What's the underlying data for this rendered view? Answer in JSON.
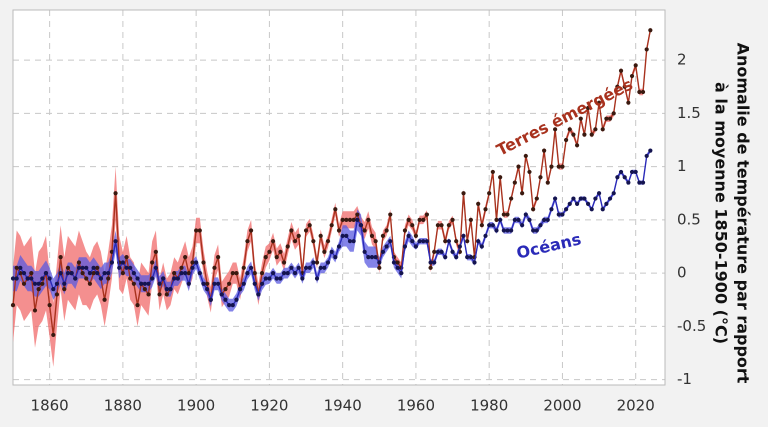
{
  "chart_data": {
    "type": "line",
    "y_label_lines": [
      "Anomalie de température par rapport",
      "à la moyenne 1850-1900 (°C)"
    ],
    "xlim": [
      1850,
      2028
    ],
    "ylim": [
      -1.05,
      2.47
    ],
    "xticks": [
      1860,
      1880,
      1900,
      1920,
      1940,
      1960,
      1980,
      2000,
      2020
    ],
    "yticks": [
      -1,
      -0.5,
      0,
      0.5,
      1,
      1.5,
      2
    ],
    "grid": true,
    "x": [
      1850,
      1851,
      1852,
      1853,
      1854,
      1855,
      1856,
      1857,
      1858,
      1859,
      1860,
      1861,
      1862,
      1863,
      1864,
      1865,
      1866,
      1867,
      1868,
      1869,
      1870,
      1871,
      1872,
      1873,
      1874,
      1875,
      1876,
      1877,
      1878,
      1879,
      1880,
      1881,
      1882,
      1883,
      1884,
      1885,
      1886,
      1887,
      1888,
      1889,
      1890,
      1891,
      1892,
      1893,
      1894,
      1895,
      1896,
      1897,
      1898,
      1899,
      1900,
      1901,
      1902,
      1903,
      1904,
      1905,
      1906,
      1907,
      1908,
      1909,
      1910,
      1911,
      1912,
      1913,
      1914,
      1915,
      1916,
      1917,
      1918,
      1919,
      1920,
      1921,
      1922,
      1923,
      1924,
      1925,
      1926,
      1927,
      1928,
      1929,
      1930,
      1931,
      1932,
      1933,
      1934,
      1935,
      1936,
      1937,
      1938,
      1939,
      1940,
      1941,
      1942,
      1943,
      1944,
      1945,
      1946,
      1947,
      1948,
      1949,
      1950,
      1951,
      1952,
      1953,
      1954,
      1955,
      1956,
      1957,
      1958,
      1959,
      1960,
      1961,
      1962,
      1963,
      1964,
      1965,
      1966,
      1967,
      1968,
      1969,
      1970,
      1971,
      1972,
      1973,
      1974,
      1975,
      1976,
      1977,
      1978,
      1979,
      1980,
      1981,
      1982,
      1983,
      1984,
      1985,
      1986,
      1987,
      1988,
      1989,
      1990,
      1991,
      1992,
      1993,
      1994,
      1995,
      1996,
      1997,
      1998,
      1999,
      2000,
      2001,
      2002,
      2003,
      2004,
      2005,
      2006,
      2007,
      2008,
      2009,
      2010,
      2011,
      2012,
      2013,
      2014,
      2015,
      2016,
      2017,
      2018,
      2019,
      2020,
      2021,
      2022,
      2023,
      2024
    ],
    "series": [
      {
        "name": "Terres émergées",
        "color": "#a8321e",
        "band_color": "#f06a6a",
        "dot_color": "#3a1a10",
        "values": [
          -0.3,
          0.05,
          0.0,
          -0.1,
          -0.05,
          0.0,
          -0.35,
          -0.15,
          -0.1,
          0.0,
          -0.3,
          -0.58,
          -0.2,
          0.15,
          -0.15,
          0.05,
          0.0,
          -0.05,
          0.1,
          0.0,
          -0.05,
          -0.1,
          0.0,
          0.05,
          -0.05,
          -0.25,
          -0.05,
          0.2,
          0.75,
          0.1,
          0.0,
          0.15,
          -0.05,
          -0.1,
          -0.3,
          -0.1,
          -0.15,
          -0.2,
          0.1,
          0.2,
          -0.2,
          -0.05,
          -0.2,
          -0.15,
          0.0,
          -0.05,
          0.05,
          0.15,
          0.0,
          0.1,
          0.4,
          0.4,
          0.1,
          -0.1,
          -0.25,
          0.05,
          0.15,
          -0.2,
          -0.15,
          -0.1,
          0.0,
          0.0,
          -0.15,
          0.05,
          0.3,
          0.4,
          0.0,
          -0.2,
          0.0,
          0.15,
          0.2,
          0.3,
          0.15,
          0.2,
          0.1,
          0.25,
          0.4,
          0.3,
          0.35,
          0.0,
          0.4,
          0.45,
          0.3,
          0.1,
          0.35,
          0.2,
          0.3,
          0.45,
          0.6,
          0.4,
          0.5,
          0.5,
          0.5,
          0.5,
          0.55,
          0.45,
          0.4,
          0.5,
          0.35,
          0.3,
          0.05,
          0.35,
          0.4,
          0.55,
          0.15,
          0.1,
          0.05,
          0.4,
          0.5,
          0.45,
          0.35,
          0.5,
          0.5,
          0.55,
          0.05,
          0.2,
          0.45,
          0.45,
          0.3,
          0.45,
          0.5,
          0.3,
          0.2,
          0.75,
          0.3,
          0.5,
          0.15,
          0.65,
          0.45,
          0.6,
          0.75,
          0.95,
          0.5,
          0.9,
          0.55,
          0.55,
          0.7,
          0.85,
          1.0,
          0.75,
          1.1,
          0.95,
          0.6,
          0.7,
          0.9,
          1.15,
          0.85,
          1.0,
          1.35,
          1.0,
          1.0,
          1.25,
          1.35,
          1.3,
          1.2,
          1.45,
          1.3,
          1.55,
          1.3,
          1.35,
          1.6,
          1.35,
          1.45,
          1.45,
          1.5,
          1.75,
          1.9,
          1.75,
          1.6,
          1.85,
          1.95,
          1.7,
          1.7,
          2.1,
          2.28
        ],
        "uncertainty": [
          0.35,
          0.35,
          0.35,
          0.35,
          0.35,
          0.35,
          0.35,
          0.35,
          0.35,
          0.35,
          0.3,
          0.3,
          0.3,
          0.3,
          0.3,
          0.3,
          0.3,
          0.3,
          0.3,
          0.3,
          0.25,
          0.25,
          0.25,
          0.25,
          0.25,
          0.25,
          0.25,
          0.25,
          0.25,
          0.25,
          0.2,
          0.2,
          0.2,
          0.2,
          0.2,
          0.2,
          0.2,
          0.2,
          0.2,
          0.2,
          0.15,
          0.15,
          0.15,
          0.15,
          0.15,
          0.15,
          0.15,
          0.15,
          0.15,
          0.15,
          0.12,
          0.12,
          0.12,
          0.12,
          0.12,
          0.12,
          0.12,
          0.12,
          0.12,
          0.12,
          0.1,
          0.1,
          0.1,
          0.1,
          0.1,
          0.1,
          0.1,
          0.1,
          0.1,
          0.1,
          0.08,
          0.08,
          0.08,
          0.08,
          0.08,
          0.08,
          0.08,
          0.08,
          0.08,
          0.08,
          0.06,
          0.06,
          0.06,
          0.06,
          0.06,
          0.06,
          0.06,
          0.06,
          0.06,
          0.06,
          0.08,
          0.08,
          0.08,
          0.08,
          0.08,
          0.08,
          0.08,
          0.08,
          0.08,
          0.08,
          0.05,
          0.05,
          0.05,
          0.05,
          0.05,
          0.05,
          0.05,
          0.05,
          0.05,
          0.05,
          0.04,
          0.04,
          0.04,
          0.04,
          0.04,
          0.04,
          0.04,
          0.04,
          0.04,
          0.04,
          0.04,
          0.04,
          0.04,
          0.04,
          0.04,
          0.04,
          0.04,
          0.04,
          0.04,
          0.04,
          0.03,
          0.03,
          0.03,
          0.03,
          0.03,
          0.03,
          0.03,
          0.03,
          0.03,
          0.03,
          0.03,
          0.03,
          0.03,
          0.03,
          0.03,
          0.03,
          0.03,
          0.03,
          0.03,
          0.03,
          0.03,
          0.03,
          0.03,
          0.03,
          0.03,
          0.03,
          0.03,
          0.03,
          0.03,
          0.03,
          0.03,
          0.03,
          0.03,
          0.03,
          0.03,
          0.03,
          0.03,
          0.03,
          0.03,
          0.03,
          0.03,
          0.03,
          0.03,
          0.03,
          0.03
        ]
      },
      {
        "name": "Océans",
        "color": "#2a2ab8",
        "band_color": "#5a5ae0",
        "dot_color": "#141450",
        "values": [
          -0.05,
          -0.05,
          0.05,
          0.0,
          -0.05,
          -0.05,
          -0.1,
          -0.1,
          -0.05,
          0.0,
          -0.05,
          -0.15,
          -0.1,
          0.0,
          -0.1,
          0.0,
          0.0,
          -0.05,
          0.05,
          0.05,
          0.05,
          0.0,
          0.05,
          0.0,
          -0.05,
          0.0,
          0.0,
          0.1,
          0.3,
          0.05,
          0.1,
          0.05,
          0.05,
          0.0,
          -0.05,
          -0.1,
          -0.1,
          -0.1,
          -0.05,
          0.05,
          -0.1,
          -0.05,
          -0.15,
          -0.15,
          -0.05,
          -0.05,
          0.0,
          0.0,
          -0.1,
          0.05,
          0.1,
          0.0,
          -0.1,
          -0.15,
          -0.25,
          -0.1,
          -0.1,
          -0.2,
          -0.25,
          -0.3,
          -0.3,
          -0.25,
          -0.15,
          -0.1,
          0.0,
          0.05,
          -0.1,
          -0.2,
          -0.1,
          -0.05,
          -0.05,
          0.0,
          -0.05,
          -0.05,
          0.0,
          0.0,
          0.05,
          0.0,
          0.05,
          -0.05,
          0.05,
          0.05,
          0.1,
          -0.05,
          0.05,
          0.05,
          0.1,
          0.2,
          0.15,
          0.25,
          0.35,
          0.35,
          0.3,
          0.3,
          0.5,
          0.45,
          0.2,
          0.15,
          0.15,
          0.15,
          0.1,
          0.2,
          0.25,
          0.3,
          0.1,
          0.05,
          0.0,
          0.25,
          0.35,
          0.3,
          0.25,
          0.3,
          0.3,
          0.3,
          0.1,
          0.1,
          0.2,
          0.2,
          0.15,
          0.3,
          0.2,
          0.15,
          0.25,
          0.35,
          0.15,
          0.15,
          0.1,
          0.3,
          0.25,
          0.35,
          0.45,
          0.45,
          0.4,
          0.5,
          0.4,
          0.4,
          0.4,
          0.5,
          0.5,
          0.45,
          0.55,
          0.5,
          0.4,
          0.4,
          0.45,
          0.5,
          0.5,
          0.6,
          0.7,
          0.55,
          0.55,
          0.6,
          0.65,
          0.7,
          0.65,
          0.7,
          0.7,
          0.65,
          0.6,
          0.7,
          0.75,
          0.6,
          0.65,
          0.7,
          0.75,
          0.9,
          0.95,
          0.9,
          0.85,
          0.95,
          0.95,
          0.85,
          0.85,
          1.1,
          1.15
        ],
        "uncertainty": [
          0.12,
          0.12,
          0.12,
          0.12,
          0.12,
          0.12,
          0.12,
          0.12,
          0.12,
          0.12,
          0.1,
          0.1,
          0.1,
          0.1,
          0.1,
          0.1,
          0.1,
          0.1,
          0.1,
          0.1,
          0.1,
          0.1,
          0.1,
          0.1,
          0.1,
          0.1,
          0.1,
          0.1,
          0.1,
          0.1,
          0.08,
          0.08,
          0.08,
          0.08,
          0.08,
          0.08,
          0.08,
          0.08,
          0.08,
          0.08,
          0.07,
          0.07,
          0.07,
          0.07,
          0.07,
          0.07,
          0.07,
          0.07,
          0.07,
          0.07,
          0.06,
          0.06,
          0.06,
          0.06,
          0.06,
          0.06,
          0.06,
          0.06,
          0.06,
          0.06,
          0.06,
          0.06,
          0.06,
          0.06,
          0.06,
          0.06,
          0.06,
          0.06,
          0.06,
          0.06,
          0.05,
          0.05,
          0.05,
          0.05,
          0.05,
          0.05,
          0.05,
          0.05,
          0.05,
          0.05,
          0.05,
          0.05,
          0.05,
          0.05,
          0.05,
          0.05,
          0.05,
          0.05,
          0.05,
          0.05,
          0.1,
          0.1,
          0.1,
          0.1,
          0.1,
          0.1,
          0.1,
          0.1,
          0.1,
          0.1,
          0.05,
          0.05,
          0.05,
          0.05,
          0.05,
          0.05,
          0.05,
          0.05,
          0.05,
          0.05,
          0.03,
          0.03,
          0.03,
          0.03,
          0.03,
          0.03,
          0.03,
          0.03,
          0.03,
          0.03,
          0.03,
          0.03,
          0.03,
          0.03,
          0.03,
          0.03,
          0.03,
          0.03,
          0.03,
          0.03,
          0.03,
          0.03,
          0.03,
          0.03,
          0.03,
          0.03,
          0.03,
          0.03,
          0.03,
          0.03,
          0.03,
          0.03,
          0.03,
          0.03,
          0.03,
          0.03,
          0.03,
          0.03,
          0.03,
          0.03,
          0.02,
          0.02,
          0.02,
          0.02,
          0.02,
          0.02,
          0.02,
          0.02,
          0.02,
          0.02,
          0.02,
          0.02,
          0.02,
          0.02,
          0.02,
          0.02,
          0.02,
          0.02,
          0.02,
          0.02,
          0.02,
          0.02,
          0.02,
          0.02,
          0.02
        ]
      }
    ]
  }
}
